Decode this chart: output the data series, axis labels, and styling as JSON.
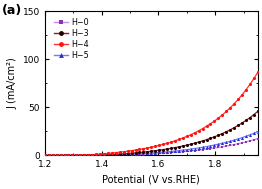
{
  "title_label": "(a)",
  "xlabel": "Potential (V vs.RHE)",
  "ylabel": "J (mA/cm²)",
  "xlim": [
    1.2,
    1.95
  ],
  "ylim": [
    0,
    150
  ],
  "yticks": [
    0,
    50,
    100,
    150
  ],
  "xticks": [
    1.2,
    1.4,
    1.6,
    1.8
  ],
  "series": [
    {
      "label": "H−0",
      "line_color": "#cc88ee",
      "marker": "s",
      "marker_color": "#8833aa",
      "onset": 1.42,
      "scale": 1.5,
      "exp_factor": 4.8
    },
    {
      "label": "H−3",
      "line_color": "#882222",
      "marker": "o",
      "marker_color": "#220000",
      "onset": 1.38,
      "scale": 2.5,
      "exp_factor": 5.2
    },
    {
      "label": "H−4",
      "line_color": "#ff3333",
      "marker": "o",
      "marker_color": "#ff1111",
      "onset": 1.32,
      "scale": 2.8,
      "exp_factor": 5.5
    },
    {
      "label": "H−5",
      "line_color": "#7777ff",
      "marker": "^",
      "marker_color": "#2233cc",
      "onset": 1.4,
      "scale": 1.8,
      "exp_factor": 4.9
    }
  ],
  "background_color": "#ffffff",
  "figsize": [
    2.62,
    1.89
  ],
  "dpi": 100
}
